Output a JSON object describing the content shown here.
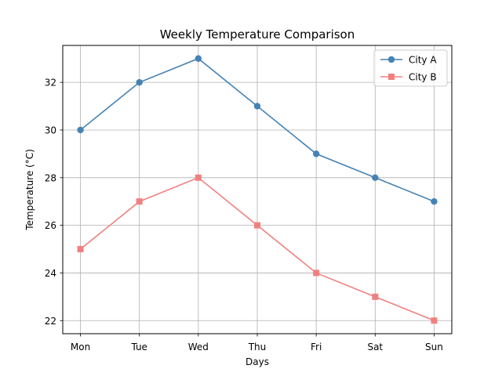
{
  "chart_data": {
    "type": "line",
    "title": "Weekly Temperature Comparison",
    "xlabel": "Days",
    "ylabel": "Temperature (°C)",
    "categories": [
      "Mon",
      "Tue",
      "Wed",
      "Thu",
      "Fri",
      "Sat",
      "Sun"
    ],
    "ylim": [
      21.45,
      33.55
    ],
    "yticks": [
      22,
      24,
      26,
      28,
      30,
      32
    ],
    "grid": true,
    "legend_position": "top-right",
    "series": [
      {
        "name": "City A",
        "values": [
          30,
          32,
          33,
          31,
          29,
          28,
          27
        ],
        "color": "#4682b4",
        "marker": "circle"
      },
      {
        "name": "City B",
        "values": [
          25,
          27,
          28,
          26,
          24,
          23,
          22
        ],
        "color": "#f08080",
        "marker": "square"
      }
    ]
  }
}
